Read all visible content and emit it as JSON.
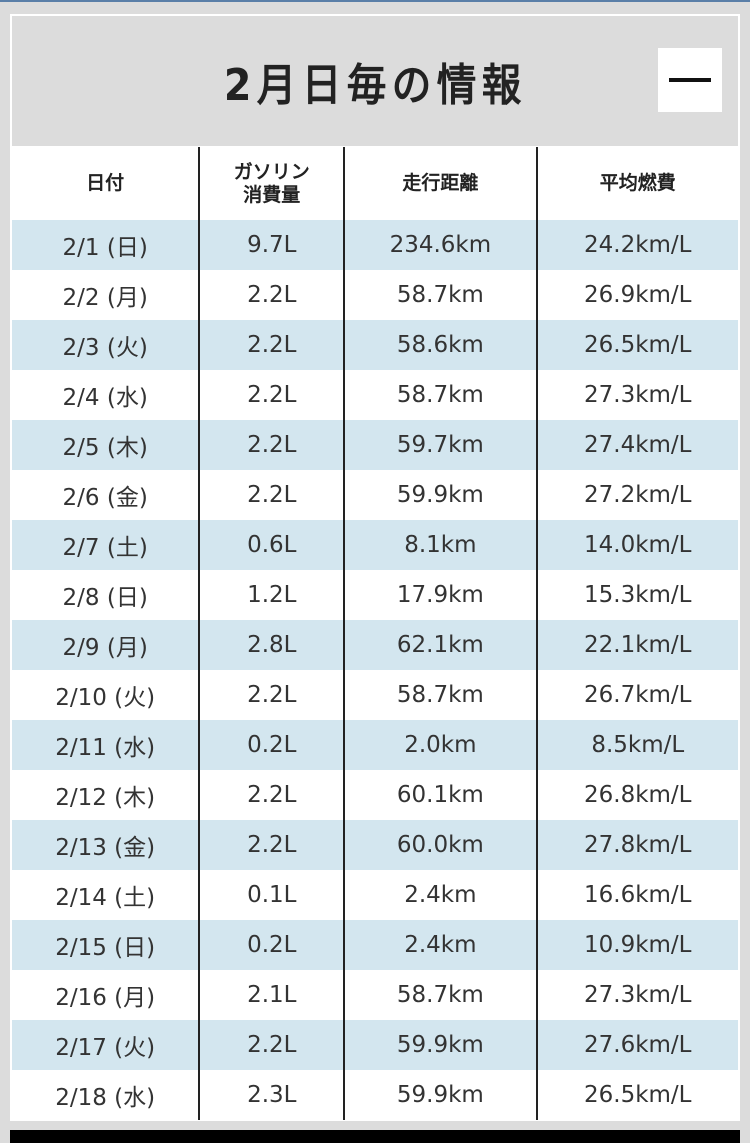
{
  "title": "2月日毎の情報",
  "collapse_label": "—",
  "columns": [
    "日付",
    "ガソリン\n消費量",
    "走行距離",
    "平均燃費"
  ],
  "colors": {
    "row_alt": "#d3e6ef",
    "header_bg": "#dcdcdc"
  },
  "rows": [
    [
      "2/1 (日)",
      "9.7L",
      "234.6km",
      "24.2km/L"
    ],
    [
      "2/2 (月)",
      "2.2L",
      "58.7km",
      "26.9km/L"
    ],
    [
      "2/3 (火)",
      "2.2L",
      "58.6km",
      "26.5km/L"
    ],
    [
      "2/4 (水)",
      "2.2L",
      "58.7km",
      "27.3km/L"
    ],
    [
      "2/5 (木)",
      "2.2L",
      "59.7km",
      "27.4km/L"
    ],
    [
      "2/6 (金)",
      "2.2L",
      "59.9km",
      "27.2km/L"
    ],
    [
      "2/7 (土)",
      "0.6L",
      "8.1km",
      "14.0km/L"
    ],
    [
      "2/8 (日)",
      "1.2L",
      "17.9km",
      "15.3km/L"
    ],
    [
      "2/9 (月)",
      "2.8L",
      "62.1km",
      "22.1km/L"
    ],
    [
      "2/10 (火)",
      "2.2L",
      "58.7km",
      "26.7km/L"
    ],
    [
      "2/11 (水)",
      "0.2L",
      "2.0km",
      "8.5km/L"
    ],
    [
      "2/12 (木)",
      "2.2L",
      "60.1km",
      "26.8km/L"
    ],
    [
      "2/13 (金)",
      "2.2L",
      "60.0km",
      "27.8km/L"
    ],
    [
      "2/14 (土)",
      "0.1L",
      "2.4km",
      "16.6km/L"
    ],
    [
      "2/15 (日)",
      "0.2L",
      "2.4km",
      "10.9km/L"
    ],
    [
      "2/16 (月)",
      "2.1L",
      "58.7km",
      "27.3km/L"
    ],
    [
      "2/17 (火)",
      "2.2L",
      "59.9km",
      "27.6km/L"
    ],
    [
      "2/18 (水)",
      "2.3L",
      "59.9km",
      "26.5km/L"
    ]
  ]
}
